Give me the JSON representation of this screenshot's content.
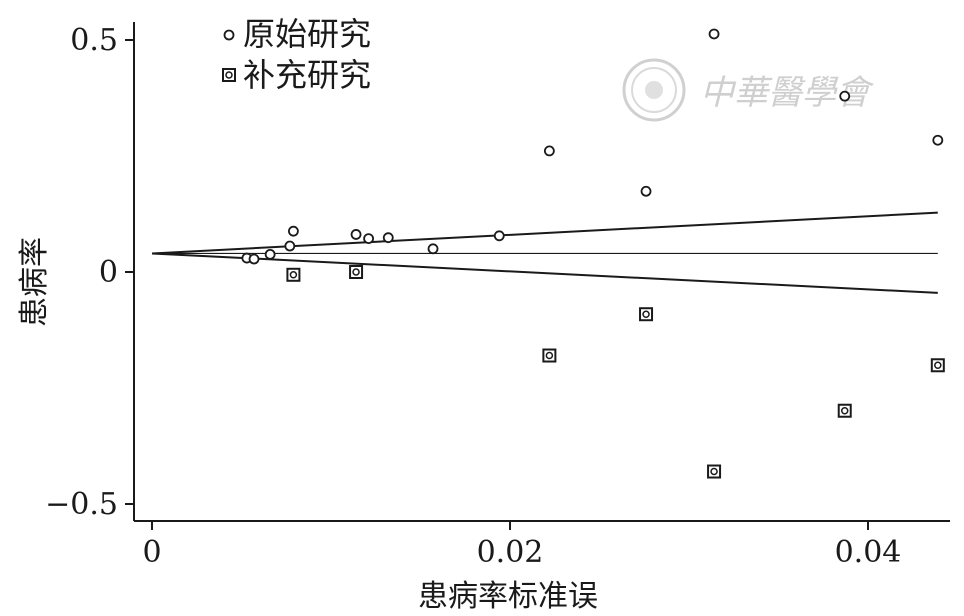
{
  "chart_data": {
    "type": "scatter",
    "xlabel": "患病率标准误",
    "ylabel": "患病率",
    "xlim": [
      0,
      0.045
    ],
    "ylim": [
      -0.5,
      0.5
    ],
    "x_ticks": [
      {
        "value": 0,
        "label": "0"
      },
      {
        "value": 0.02,
        "label": "0.02"
      },
      {
        "value": 0.04,
        "label": "0.04"
      }
    ],
    "y_ticks": [
      {
        "value": 0.5,
        "label": "0.5"
      },
      {
        "value": 0,
        "label": "0"
      },
      {
        "value": -0.5,
        "label": "−0.5"
      }
    ],
    "legend_position": "top-left",
    "series": [
      {
        "name": "原始研究",
        "marker": "circle",
        "color": "#1a1a1a",
        "points": [
          {
            "x": 0.0053,
            "y": 0.03
          },
          {
            "x": 0.0057,
            "y": 0.028
          },
          {
            "x": 0.0066,
            "y": 0.038
          },
          {
            "x": 0.0077,
            "y": 0.056
          },
          {
            "x": 0.0079,
            "y": 0.088
          },
          {
            "x": 0.0114,
            "y": 0.081
          },
          {
            "x": 0.0121,
            "y": 0.072
          },
          {
            "x": 0.0132,
            "y": 0.074
          },
          {
            "x": 0.0157,
            "y": 0.05
          },
          {
            "x": 0.0194,
            "y": 0.078
          },
          {
            "x": 0.0222,
            "y": 0.261
          },
          {
            "x": 0.0276,
            "y": 0.174
          },
          {
            "x": 0.0314,
            "y": 0.513
          },
          {
            "x": 0.0387,
            "y": 0.379
          },
          {
            "x": 0.0439,
            "y": 0.284
          }
        ]
      },
      {
        "name": "补充研究",
        "marker": "square",
        "color": "#1a1a1a",
        "points": [
          {
            "x": 0.0079,
            "y": -0.006
          },
          {
            "x": 0.0114,
            "y": 0.0
          },
          {
            "x": 0.0222,
            "y": -0.18
          },
          {
            "x": 0.0276,
            "y": -0.091
          },
          {
            "x": 0.0314,
            "y": -0.43
          },
          {
            "x": 0.0387,
            "y": -0.299
          },
          {
            "x": 0.0439,
            "y": -0.201
          }
        ]
      }
    ],
    "reference_lines": [
      {
        "name": "pooled-estimate",
        "x": [
          0,
          0.0439
        ],
        "y": [
          0.04,
          0.04
        ]
      },
      {
        "name": "upper-bound",
        "x": [
          0,
          0.0439
        ],
        "y": [
          0.04,
          0.128
        ]
      },
      {
        "name": "lower-bound",
        "x": [
          0,
          0.0439
        ],
        "y": [
          0.04,
          -0.045
        ]
      }
    ]
  },
  "watermark": {
    "text": "中華醫學會",
    "color": "#cfcfcf"
  }
}
